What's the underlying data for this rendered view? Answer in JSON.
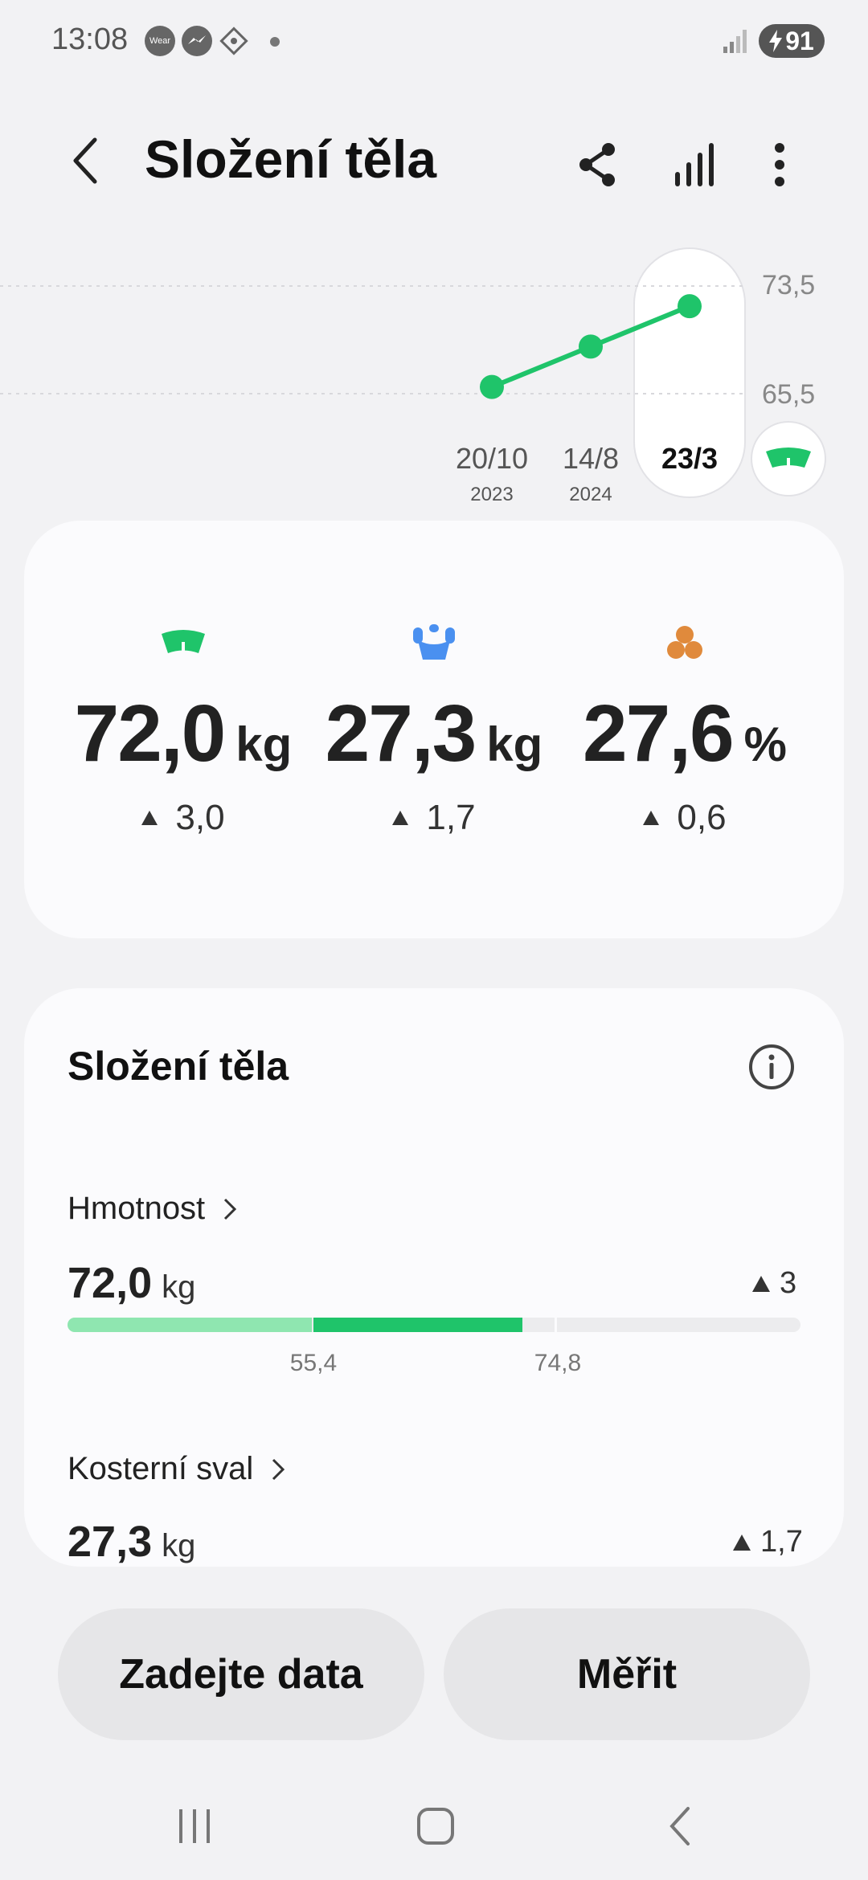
{
  "status_bar": {
    "time": "13:08",
    "icons": [
      "wear-icon",
      "messenger-icon",
      "app-icon",
      "dot"
    ],
    "wear_label": "Wear",
    "battery": "91"
  },
  "header": {
    "title": "Složení těla",
    "actions": [
      "share-icon",
      "bar-chart-icon",
      "more-icon"
    ]
  },
  "chart_data": {
    "type": "line",
    "x": [
      "20/10 2023",
      "14/8 2024",
      "23/3"
    ],
    "dates": [
      {
        "day": "20/10",
        "year": "2023"
      },
      {
        "day": "14/8",
        "year": "2024"
      },
      {
        "day": "23/3",
        "year": ""
      }
    ],
    "values": [
      66.0,
      69.0,
      72.0
    ],
    "y_ticks": [
      "73,5",
      "65,5"
    ],
    "ylim": [
      65.5,
      73.5
    ],
    "selected_index": 2,
    "color": "#1fc46a"
  },
  "summary": [
    {
      "icon": "scale-icon",
      "value": "72,0",
      "unit": "kg",
      "delta": "3,0",
      "color": "#1fc46a"
    },
    {
      "icon": "muscle-icon",
      "value": "27,3",
      "unit": "kg",
      "delta": "1,7",
      "color": "#4a90f0"
    },
    {
      "icon": "fat-icon",
      "value": "27,6",
      "unit": "%",
      "delta": "0,6",
      "color": "#e08a3c"
    }
  ],
  "detail": {
    "title": "Složení těla",
    "rows": [
      {
        "label": "Hmotnost",
        "value": "72,0",
        "unit": "kg",
        "delta": "3",
        "range_low": "55,4",
        "range_high": "74,8"
      },
      {
        "label": "Kosterní sval",
        "value": "27,3",
        "unit": "kg",
        "delta": "1,7"
      }
    ]
  },
  "buttons": {
    "enter_data": "Zadejte data",
    "measure": "Měřit"
  },
  "colors": {
    "accent": "#1fc46a",
    "accent_light": "#8fe6b0",
    "muscle": "#4a90f0",
    "fat": "#e08a3c"
  }
}
